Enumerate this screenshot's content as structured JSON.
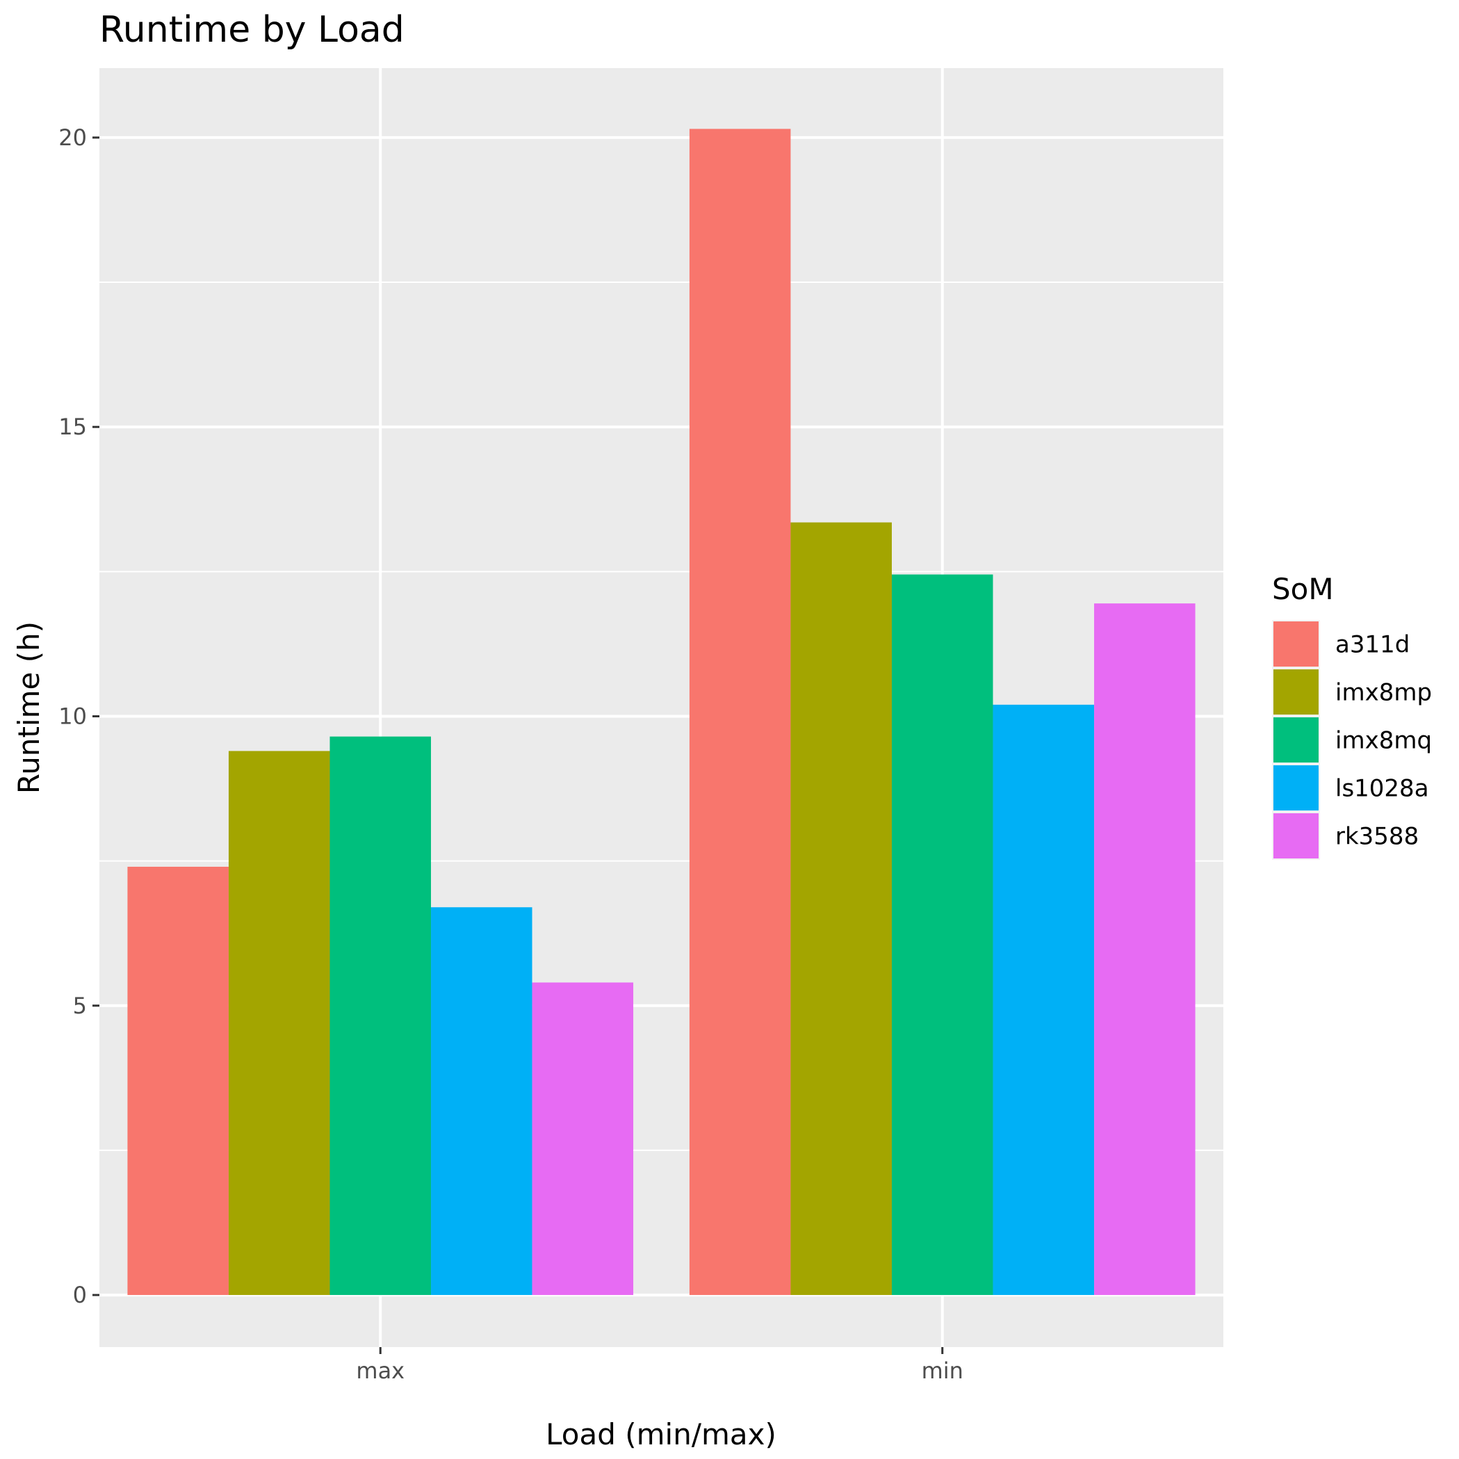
{
  "chart_data": {
    "type": "bar",
    "title": "Runtime by Load",
    "xlabel": "Load (min/max)",
    "ylabel": "Runtime (h)",
    "categories": [
      "max",
      "min"
    ],
    "series": [
      {
        "name": "a311d",
        "color": "#F8766D",
        "values": [
          7.4,
          20.15
        ]
      },
      {
        "name": "imx8mp",
        "color": "#A3A500",
        "values": [
          9.4,
          13.35
        ]
      },
      {
        "name": "imx8mq",
        "color": "#00BF7D",
        "values": [
          9.65,
          12.45
        ]
      },
      {
        "name": "ls1028a",
        "color": "#00B0F6",
        "values": [
          6.7,
          10.2
        ]
      },
      {
        "name": "rk3588",
        "color": "#E76BF3",
        "values": [
          5.4,
          11.95
        ]
      }
    ],
    "ylim": [
      -0.9,
      21.2
    ],
    "yticks": [
      0,
      5,
      10,
      15,
      20
    ],
    "grid": true,
    "panel_background": "#EBEBEB",
    "legend": {
      "title": "SoM",
      "position": "right"
    }
  }
}
